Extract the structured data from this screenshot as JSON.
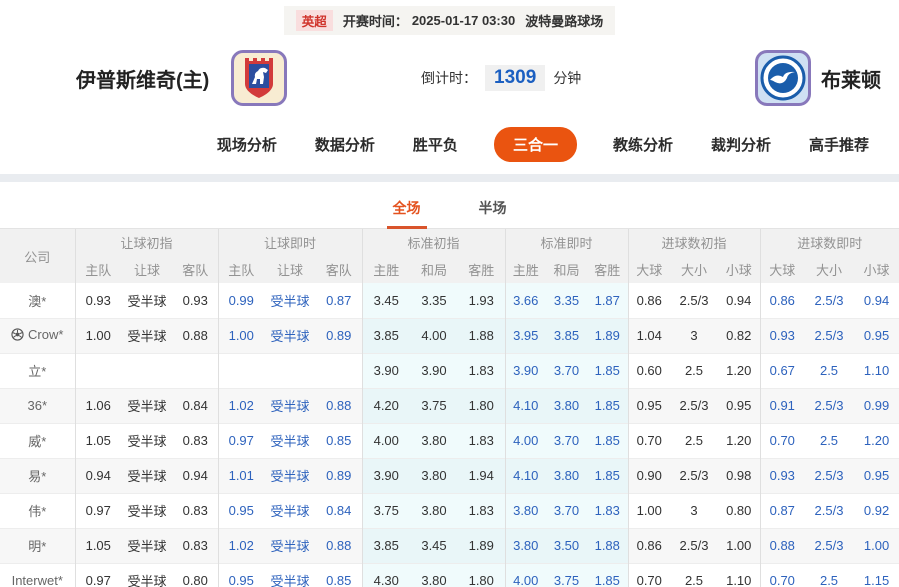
{
  "colors": {
    "accent_orange": "#ea5410",
    "live_blue": "#2d62bd",
    "countdown_blue": "#1b5fc1",
    "league_red": "#d0342c"
  },
  "match_bar": {
    "league": "英超",
    "kickoff_label": "开赛时间：",
    "kickoff_time": "2025-01-17 03:30",
    "venue": "波特曼路球场"
  },
  "teams": {
    "home_name": "伊普斯维奇(主)",
    "away_name": "布莱顿"
  },
  "countdown": {
    "label": "倒计时：",
    "value": "1309",
    "unit": "分钟"
  },
  "nav": {
    "items": [
      {
        "label": "现场分析",
        "active": false
      },
      {
        "label": "数据分析",
        "active": false
      },
      {
        "label": "胜平负",
        "active": false
      },
      {
        "label": "三合一",
        "active": true
      },
      {
        "label": "教练分析",
        "active": false
      },
      {
        "label": "裁判分析",
        "active": false
      },
      {
        "label": "高手推荐",
        "active": false
      }
    ]
  },
  "subtabs": [
    {
      "label": "全场",
      "active": true
    },
    {
      "label": "半场",
      "active": false
    }
  ],
  "table": {
    "company_header": "公司",
    "groups": [
      {
        "label": "让球初指",
        "cols": [
          "主队",
          "让球",
          "客队"
        ],
        "live": false,
        "tint": false
      },
      {
        "label": "让球即时",
        "cols": [
          "主队",
          "让球",
          "客队"
        ],
        "live": true,
        "tint": false
      },
      {
        "label": "标准初指",
        "cols": [
          "主胜",
          "和局",
          "客胜"
        ],
        "live": false,
        "tint": true
      },
      {
        "label": "标准即时",
        "cols": [
          "主胜",
          "和局",
          "客胜"
        ],
        "live": true,
        "tint": true
      },
      {
        "label": "进球数初指",
        "cols": [
          "大球",
          "大小",
          "小球"
        ],
        "live": false,
        "tint": false
      },
      {
        "label": "进球数即时",
        "cols": [
          "大球",
          "大小",
          "小球"
        ],
        "live": true,
        "tint": false
      }
    ],
    "rows": [
      {
        "company": "澳*",
        "icon": false,
        "cells": [
          [
            "0.93",
            "受半球",
            "0.93"
          ],
          [
            "0.99",
            "受半球",
            "0.87"
          ],
          [
            "3.45",
            "3.35",
            "1.93"
          ],
          [
            "3.66",
            "3.35",
            "1.87"
          ],
          [
            "0.86",
            "2.5/3",
            "0.94"
          ],
          [
            "0.86",
            "2.5/3",
            "0.94"
          ]
        ]
      },
      {
        "company": "Crow*",
        "icon": true,
        "cells": [
          [
            "1.00",
            "受半球",
            "0.88"
          ],
          [
            "1.00",
            "受半球",
            "0.89"
          ],
          [
            "3.85",
            "4.00",
            "1.88"
          ],
          [
            "3.95",
            "3.85",
            "1.89"
          ],
          [
            "1.04",
            "3",
            "0.82"
          ],
          [
            "0.93",
            "2.5/3",
            "0.95"
          ]
        ]
      },
      {
        "company": "立*",
        "icon": false,
        "cells": [
          [
            "",
            "",
            ""
          ],
          [
            "",
            "",
            ""
          ],
          [
            "3.90",
            "3.90",
            "1.83"
          ],
          [
            "3.90",
            "3.70",
            "1.85"
          ],
          [
            "0.60",
            "2.5",
            "1.20"
          ],
          [
            "0.67",
            "2.5",
            "1.10"
          ]
        ]
      },
      {
        "company": "36*",
        "icon": false,
        "cells": [
          [
            "1.06",
            "受半球",
            "0.84"
          ],
          [
            "1.02",
            "受半球",
            "0.88"
          ],
          [
            "4.20",
            "3.75",
            "1.80"
          ],
          [
            "4.10",
            "3.80",
            "1.85"
          ],
          [
            "0.95",
            "2.5/3",
            "0.95"
          ],
          [
            "0.91",
            "2.5/3",
            "0.99"
          ]
        ]
      },
      {
        "company": "威*",
        "icon": false,
        "cells": [
          [
            "1.05",
            "受半球",
            "0.83"
          ],
          [
            "0.97",
            "受半球",
            "0.85"
          ],
          [
            "4.00",
            "3.80",
            "1.83"
          ],
          [
            "4.00",
            "3.70",
            "1.85"
          ],
          [
            "0.70",
            "2.5",
            "1.20"
          ],
          [
            "0.70",
            "2.5",
            "1.20"
          ]
        ]
      },
      {
        "company": "易*",
        "icon": false,
        "cells": [
          [
            "0.94",
            "受半球",
            "0.94"
          ],
          [
            "1.01",
            "受半球",
            "0.89"
          ],
          [
            "3.90",
            "3.80",
            "1.94"
          ],
          [
            "4.10",
            "3.80",
            "1.85"
          ],
          [
            "0.90",
            "2.5/3",
            "0.98"
          ],
          [
            "0.93",
            "2.5/3",
            "0.95"
          ]
        ]
      },
      {
        "company": "伟*",
        "icon": false,
        "cells": [
          [
            "0.97",
            "受半球",
            "0.83"
          ],
          [
            "0.95",
            "受半球",
            "0.84"
          ],
          [
            "3.75",
            "3.80",
            "1.83"
          ],
          [
            "3.80",
            "3.70",
            "1.83"
          ],
          [
            "1.00",
            "3",
            "0.80"
          ],
          [
            "0.87",
            "2.5/3",
            "0.92"
          ]
        ]
      },
      {
        "company": "明*",
        "icon": false,
        "cells": [
          [
            "1.05",
            "受半球",
            "0.83"
          ],
          [
            "1.02",
            "受半球",
            "0.88"
          ],
          [
            "3.85",
            "3.45",
            "1.89"
          ],
          [
            "3.80",
            "3.50",
            "1.88"
          ],
          [
            "0.86",
            "2.5/3",
            "1.00"
          ],
          [
            "0.88",
            "2.5/3",
            "1.00"
          ]
        ]
      },
      {
        "company": "Interwet*",
        "icon": false,
        "cells": [
          [
            "0.97",
            "受半球",
            "0.80"
          ],
          [
            "0.95",
            "受半球",
            "0.85"
          ],
          [
            "4.30",
            "3.80",
            "1.80"
          ],
          [
            "4.00",
            "3.75",
            "1.85"
          ],
          [
            "0.70",
            "2.5",
            "1.10"
          ],
          [
            "0.70",
            "2.5",
            "1.15"
          ]
        ]
      }
    ]
  }
}
